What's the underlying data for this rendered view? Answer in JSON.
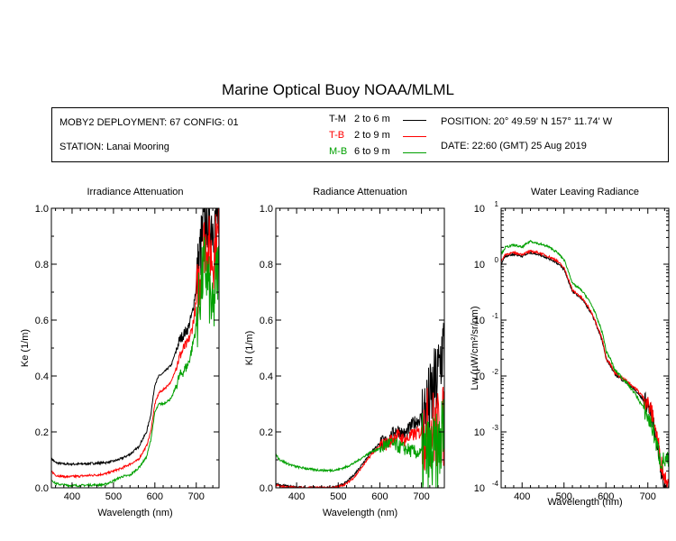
{
  "figure": {
    "title": "Marine Optical Buoy NOAA/MLML",
    "deployment": "MOBY2 DEPLOYMENT: 67 CONFIG: 01",
    "station": "STATION: Lanai Mooring",
    "position": "POSITION: 20° 49.59' N   157° 11.74' W",
    "date": "DATE: 22:60 (GMT) 25 Aug 2019",
    "legend": [
      {
        "name": "T-M",
        "range": "2 to 6  m",
        "color": "#000000"
      },
      {
        "name": "T-B",
        "range": "2 to 9  m",
        "color": "#ff0000"
      },
      {
        "name": "M-B",
        "range": "6 to 9  m",
        "color": "#00a000"
      }
    ]
  },
  "chart_data": [
    {
      "type": "line",
      "title": "Irradiance Attenuation",
      "xlabel": "Wavelength (nm)",
      "ylabel": "Ke  (1/m)",
      "xlim": [
        350,
        755
      ],
      "ylim": [
        0,
        1.0
      ],
      "xticks": [
        400,
        500,
        600,
        700
      ],
      "yticks": [
        0.0,
        0.2,
        0.4,
        0.6,
        0.8,
        1.0
      ],
      "ytick_labels": [
        "0.0",
        "0.2",
        "0.4",
        "0.6",
        "0.8",
        "1.0"
      ],
      "series": [
        {
          "name": "T-M",
          "color": "#000000",
          "x": [
            350,
            360,
            380,
            400,
            420,
            440,
            460,
            480,
            500,
            520,
            540,
            560,
            580,
            590,
            600,
            610,
            620,
            640,
            660,
            670,
            680,
            690,
            700,
            710,
            720,
            730,
            740,
            750
          ],
          "y": [
            0.105,
            0.09,
            0.085,
            0.085,
            0.085,
            0.087,
            0.088,
            0.09,
            0.095,
            0.105,
            0.12,
            0.145,
            0.2,
            0.26,
            0.37,
            0.4,
            0.41,
            0.44,
            0.53,
            0.55,
            0.57,
            0.62,
            0.72,
            0.85,
            0.95,
            0.98,
            0.95,
            0.97
          ]
        },
        {
          "name": "T-B",
          "color": "#ff0000",
          "x": [
            350,
            360,
            380,
            400,
            420,
            440,
            460,
            480,
            500,
            520,
            540,
            560,
            580,
            590,
            600,
            610,
            620,
            640,
            660,
            670,
            680,
            690,
            700,
            710,
            720,
            730,
            740,
            750
          ],
          "y": [
            0.06,
            0.045,
            0.04,
            0.04,
            0.042,
            0.044,
            0.046,
            0.05,
            0.06,
            0.07,
            0.085,
            0.1,
            0.15,
            0.2,
            0.3,
            0.34,
            0.35,
            0.38,
            0.47,
            0.5,
            0.52,
            0.57,
            0.66,
            0.78,
            0.88,
            0.86,
            0.82,
            0.89
          ]
        },
        {
          "name": "M-B",
          "color": "#00a000",
          "x": [
            350,
            360,
            380,
            400,
            420,
            440,
            460,
            480,
            500,
            520,
            540,
            560,
            580,
            590,
            600,
            610,
            620,
            640,
            660,
            670,
            680,
            690,
            700,
            710,
            720,
            730,
            740,
            750
          ],
          "y": [
            0.03,
            0.015,
            0.01,
            0.008,
            0.008,
            0.01,
            0.01,
            0.012,
            0.025,
            0.04,
            0.045,
            0.07,
            0.11,
            0.17,
            0.27,
            0.3,
            0.3,
            0.32,
            0.4,
            0.42,
            0.44,
            0.5,
            0.58,
            0.7,
            0.8,
            0.72,
            0.6,
            0.78
          ]
        }
      ]
    },
    {
      "type": "line",
      "title": "Radiance Attenuation",
      "xlabel": "Wavelength (nm)",
      "ylabel": "Kl  (1/m)",
      "xlim": [
        350,
        755
      ],
      "ylim": [
        0,
        1.0
      ],
      "xticks": [
        400,
        500,
        600,
        700
      ],
      "yticks": [
        0.0,
        0.2,
        0.4,
        0.6,
        0.8,
        1.0
      ],
      "ytick_labels": [
        "0.0",
        "0.2",
        "0.4",
        "0.6",
        "0.8",
        "1.0"
      ],
      "series": [
        {
          "name": "T-M",
          "color": "#000000",
          "x": [
            350,
            360,
            380,
            400,
            420,
            440,
            460,
            480,
            500,
            520,
            540,
            560,
            580,
            600,
            620,
            640,
            660,
            680,
            700,
            720,
            740,
            750
          ],
          "y": [
            0.015,
            0.01,
            0.005,
            0.002,
            0.0,
            0.0,
            0.0,
            0.0,
            0.005,
            0.02,
            0.05,
            0.09,
            0.13,
            0.16,
            0.17,
            0.21,
            0.19,
            0.23,
            0.25,
            0.3,
            0.4,
            0.5
          ]
        },
        {
          "name": "T-B",
          "color": "#ff0000",
          "x": [
            350,
            360,
            380,
            400,
            420,
            440,
            460,
            480,
            500,
            520,
            540,
            560,
            580,
            600,
            620,
            640,
            660,
            680,
            700,
            720,
            740,
            750
          ],
          "y": [
            0.01,
            0.005,
            0.002,
            0.0,
            0.0,
            0.0,
            0.0,
            0.0,
            0.003,
            0.015,
            0.04,
            0.08,
            0.12,
            0.15,
            0.16,
            0.19,
            0.17,
            0.19,
            0.2,
            0.22,
            0.2,
            0.22
          ]
        },
        {
          "name": "M-B",
          "color": "#00a000",
          "x": [
            350,
            360,
            380,
            400,
            420,
            440,
            460,
            480,
            500,
            520,
            540,
            560,
            580,
            600,
            620,
            640,
            660,
            680,
            700,
            720,
            740,
            750
          ],
          "y": [
            0.12,
            0.1,
            0.085,
            0.075,
            0.07,
            0.065,
            0.063,
            0.062,
            0.065,
            0.075,
            0.09,
            0.11,
            0.13,
            0.14,
            0.16,
            0.15,
            0.14,
            0.13,
            0.12,
            0.11,
            0.12,
            0.2
          ]
        }
      ]
    },
    {
      "type": "line",
      "title": "Water Leaving Radiance",
      "xlabel": "Wavelength (nm)",
      "ylabel": "Lw  (µW/cm²/sr/nm)",
      "xlim": [
        350,
        750
      ],
      "yscale": "log",
      "ylim": [
        0.0001,
        10
      ],
      "xticks": [
        400,
        500,
        600,
        700
      ],
      "series": [
        {
          "name": "T-M",
          "color": "#000000",
          "x": [
            350,
            360,
            380,
            400,
            420,
            440,
            460,
            480,
            500,
            510,
            520,
            540,
            560,
            580,
            600,
            620,
            640,
            660,
            680,
            700,
            720,
            730,
            740
          ],
          "y": [
            1.0,
            1.4,
            1.5,
            1.4,
            1.6,
            1.5,
            1.3,
            1.1,
            0.8,
            0.5,
            0.32,
            0.25,
            0.15,
            0.07,
            0.02,
            0.011,
            0.0085,
            0.0065,
            0.0045,
            0.003,
            0.0008,
            0.0002,
            0.0001
          ]
        },
        {
          "name": "T-B",
          "color": "#ff0000",
          "x": [
            350,
            360,
            380,
            400,
            420,
            440,
            460,
            480,
            500,
            510,
            520,
            540,
            560,
            580,
            600,
            620,
            640,
            660,
            680,
            700,
            720,
            730,
            740
          ],
          "y": [
            1.1,
            1.5,
            1.6,
            1.5,
            1.7,
            1.6,
            1.4,
            1.2,
            0.85,
            0.55,
            0.34,
            0.26,
            0.16,
            0.075,
            0.021,
            0.0115,
            0.009,
            0.007,
            0.005,
            0.0032,
            0.0009,
            0.0003,
            0.00015
          ]
        },
        {
          "name": "M-B",
          "color": "#00a000",
          "x": [
            350,
            360,
            380,
            400,
            420,
            440,
            460,
            480,
            500,
            510,
            520,
            540,
            560,
            580,
            600,
            620,
            640,
            660,
            680,
            700,
            720,
            730,
            740
          ],
          "y": [
            1.5,
            2.0,
            2.2,
            2.0,
            2.6,
            2.3,
            2.1,
            1.7,
            1.2,
            0.75,
            0.45,
            0.35,
            0.22,
            0.1,
            0.028,
            0.013,
            0.009,
            0.006,
            0.0035,
            0.0018,
            0.0006,
            0.0003,
            0.0003
          ]
        }
      ]
    }
  ]
}
